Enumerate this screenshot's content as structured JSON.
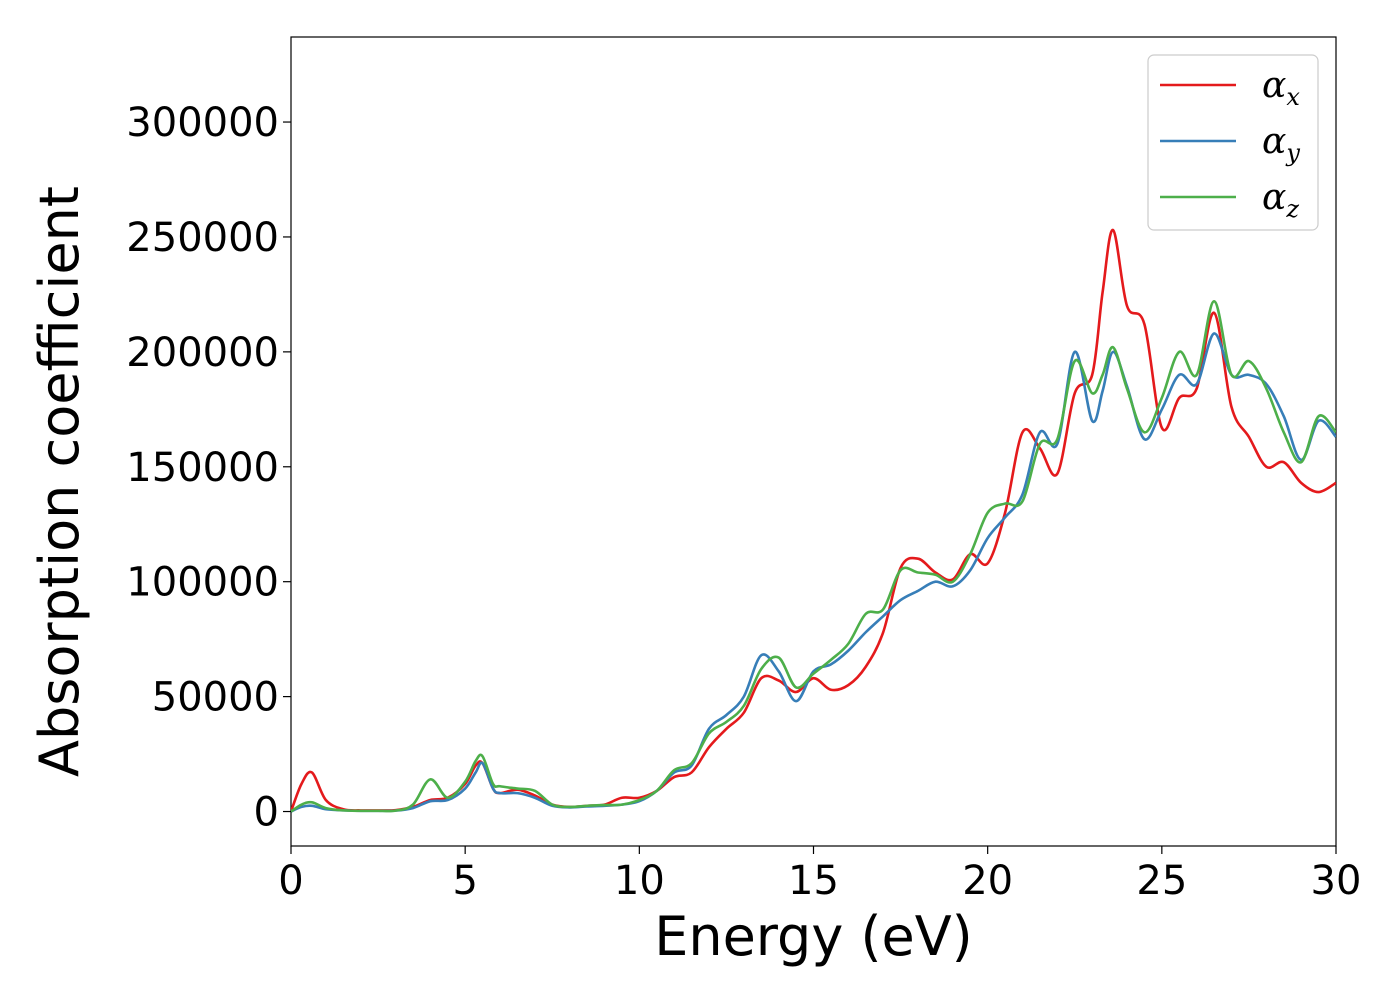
{
  "chart_data": {
    "type": "line",
    "xlabel": "Energy (eV)",
    "ylabel": "Absorption coefficient",
    "xlim": [
      0,
      30
    ],
    "ylim": [
      -15000,
      337000
    ],
    "xticks": [
      0,
      5,
      10,
      15,
      20,
      25,
      30
    ],
    "yticks": [
      0,
      50000,
      100000,
      150000,
      200000,
      250000,
      300000
    ],
    "xtick_labels": [
      "0",
      "5",
      "10",
      "15",
      "20",
      "25",
      "30"
    ],
    "ytick_labels": [
      "0",
      "50000",
      "100000",
      "150000",
      "200000",
      "250000",
      "300000"
    ],
    "grid": false,
    "legend_position": "top-right",
    "x": [
      0,
      0.3,
      0.6,
      1.0,
      1.5,
      2.0,
      2.5,
      3.0,
      3.5,
      4.0,
      4.5,
      5.0,
      5.3,
      5.5,
      5.8,
      6.0,
      6.5,
      7.0,
      7.5,
      8.0,
      8.5,
      9.0,
      9.5,
      10.0,
      10.5,
      11.0,
      11.5,
      12.0,
      12.5,
      13.0,
      13.5,
      14.0,
      14.5,
      15.0,
      15.5,
      16.0,
      16.5,
      17.0,
      17.5,
      18.0,
      18.5,
      19.0,
      19.5,
      20.0,
      20.5,
      21.0,
      21.5,
      22.0,
      22.5,
      23.0,
      23.3,
      23.6,
      24.0,
      24.5,
      25.0,
      25.5,
      26.0,
      26.5,
      27.0,
      27.5,
      28.0,
      28.5,
      29.0,
      29.5,
      30.0
    ],
    "series": [
      {
        "name": "α_x",
        "name_base": "α",
        "name_sub": "x",
        "color": "#e41a1c",
        "values": [
          0,
          12000,
          17000,
          5000,
          1000,
          500,
          500,
          600,
          2000,
          5000,
          6000,
          12000,
          20000,
          21000,
          10000,
          8000,
          9500,
          7000,
          3000,
          2000,
          2500,
          3000,
          6000,
          6000,
          9000,
          15000,
          17000,
          28000,
          36000,
          43000,
          58000,
          57000,
          52000,
          58000,
          53000,
          55000,
          63000,
          78000,
          106000,
          110000,
          104000,
          101000,
          112000,
          108000,
          130000,
          165000,
          158000,
          147000,
          182000,
          190000,
          226000,
          253000,
          220000,
          212000,
          167000,
          180000,
          184000,
          217000,
          176000,
          163000,
          150000,
          152000,
          143000,
          139000,
          143000
        ]
      },
      {
        "name": "α_y",
        "name_base": "α",
        "name_sub": "y",
        "color": "#377eb8",
        "values": [
          0,
          2000,
          2500,
          1000,
          500,
          300,
          300,
          400,
          1500,
          4500,
          5000,
          10000,
          17000,
          21000,
          10000,
          8000,
          8000,
          6000,
          2500,
          1800,
          2200,
          2500,
          3000,
          4500,
          9000,
          17000,
          20000,
          36000,
          42000,
          50000,
          68000,
          61000,
          48000,
          61000,
          64000,
          70000,
          78000,
          85000,
          92000,
          96000,
          100000,
          98000,
          105000,
          119000,
          128000,
          138000,
          165000,
          160000,
          200000,
          170000,
          183000,
          200000,
          185000,
          162000,
          175000,
          190000,
          186000,
          208000,
          190000,
          190000,
          186000,
          172000,
          153000,
          170000,
          163000
        ]
      },
      {
        "name": "α_z",
        "name_base": "α",
        "name_sub": "z",
        "color": "#4daf4a",
        "values": [
          0,
          3000,
          4000,
          1500,
          500,
          300,
          300,
          400,
          3000,
          14000,
          6000,
          13000,
          22000,
          24000,
          12000,
          11000,
          10000,
          9000,
          3000,
          2000,
          2500,
          2800,
          3000,
          5000,
          9000,
          18000,
          21000,
          34000,
          39000,
          46000,
          62000,
          67000,
          54000,
          60000,
          66000,
          73000,
          86000,
          88000,
          105000,
          104000,
          103000,
          100000,
          112000,
          130000,
          134000,
          135000,
          160000,
          162000,
          196000,
          182000,
          190000,
          202000,
          184000,
          165000,
          180000,
          200000,
          190000,
          222000,
          190000,
          196000,
          184000,
          165000,
          152000,
          172000,
          165000
        ]
      }
    ]
  }
}
